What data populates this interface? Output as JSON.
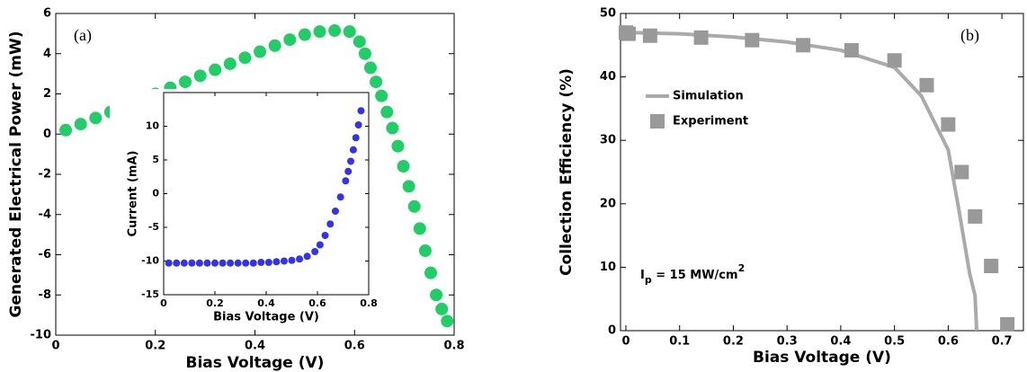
{
  "chart_data": [
    {
      "type": "scatter",
      "panel_label": "(a)",
      "xlabel": "Bias Voltage (V)",
      "ylabel": "Generated Electrical Power (mW)",
      "xlim": [
        0,
        0.8
      ],
      "xticks": [
        0,
        0.2,
        0.4,
        0.6,
        0.8
      ],
      "ylim": [
        -10,
        6
      ],
      "yticks": [
        -10,
        -8,
        -6,
        -4,
        -2,
        0,
        2,
        4,
        6
      ],
      "series": [
        {
          "color": "#22cc66",
          "marker": "circle",
          "x": [
            0.02,
            0.05,
            0.08,
            0.11,
            0.14,
            0.17,
            0.2,
            0.23,
            0.26,
            0.29,
            0.32,
            0.35,
            0.38,
            0.41,
            0.44,
            0.47,
            0.5,
            0.53,
            0.56,
            0.59,
            0.61,
            0.621,
            0.632,
            0.643,
            0.654,
            0.665,
            0.676,
            0.687,
            0.698,
            0.709,
            0.72,
            0.731,
            0.742,
            0.753,
            0.764,
            0.775,
            0.786
          ],
          "values": [
            0.2,
            0.5,
            0.8,
            1.1,
            1.4,
            1.7,
            2.0,
            2.3,
            2.6,
            2.9,
            3.2,
            3.5,
            3.8,
            4.1,
            4.4,
            4.7,
            4.95,
            5.1,
            5.15,
            5.1,
            4.6,
            4.0,
            3.3,
            2.6,
            1.9,
            1.1,
            0.3,
            -0.6,
            -1.6,
            -2.6,
            -3.6,
            -4.7,
            -5.8,
            -6.9,
            -8.0,
            -8.7,
            -9.3
          ]
        }
      ]
    },
    {
      "type": "scatter",
      "xlabel": "Bias Voltage (V)",
      "ylabel": "Current (mA)",
      "xlim": [
        0,
        0.8
      ],
      "xticks": [
        0,
        0.2,
        0.4,
        0.6,
        0.8
      ],
      "ylim": [
        -15,
        15
      ],
      "yticks": [
        -15,
        -10,
        -5,
        0,
        5,
        10
      ],
      "series": [
        {
          "color": "#3333ee",
          "marker": "circle",
          "x": [
            0.02,
            0.05,
            0.08,
            0.11,
            0.14,
            0.17,
            0.2,
            0.23,
            0.26,
            0.29,
            0.32,
            0.35,
            0.38,
            0.41,
            0.44,
            0.47,
            0.5,
            0.53,
            0.56,
            0.59,
            0.61,
            0.63,
            0.65,
            0.67,
            0.69,
            0.71,
            0.72,
            0.73,
            0.74,
            0.75,
            0.76,
            0.77
          ],
          "values": [
            -10.3,
            -10.3,
            -10.3,
            -10.3,
            -10.3,
            -10.3,
            -10.3,
            -10.3,
            -10.3,
            -10.3,
            -10.3,
            -10.3,
            -10.2,
            -10.2,
            -10.1,
            -10.0,
            -9.9,
            -9.7,
            -9.3,
            -8.6,
            -7.6,
            -6.2,
            -4.5,
            -2.6,
            -0.5,
            1.9,
            3.3,
            4.8,
            6.5,
            8.3,
            10.2,
            12.3
          ]
        }
      ]
    },
    {
      "type": "line",
      "panel_label": "(b)",
      "xlabel": "Bias Voltage (V)",
      "ylabel": "Collection Efficiency (%)",
      "xlim": [
        -0.01,
        0.74
      ],
      "xticks": [
        0,
        0.1,
        0.2,
        0.3,
        0.4,
        0.5,
        0.6,
        0.7
      ],
      "ylim": [
        0,
        50
      ],
      "yticks": [
        0,
        10,
        20,
        30,
        40,
        50
      ],
      "legend": "upper left",
      "annotation": {
        "base": "I",
        "sub": "p",
        "text": " = 15 MW/cm",
        "sup": "2"
      },
      "series": [
        {
          "name": "Simulation",
          "type": "line",
          "color": "#aaaaaa",
          "x": [
            0,
            0.1,
            0.2,
            0.3,
            0.4,
            0.5,
            0.55,
            0.6,
            0.62,
            0.64,
            0.65,
            0.653
          ],
          "values": [
            47,
            46.8,
            46.3,
            45.5,
            44.2,
            41.5,
            37,
            28.5,
            19,
            9,
            5.5,
            0
          ]
        },
        {
          "name": "Experiment",
          "type": "scatter",
          "marker": "square",
          "color": "#999999",
          "x": [
            0,
            0.005,
            0.045,
            0.14,
            0.235,
            0.33,
            0.42,
            0.5,
            0.56,
            0.6,
            0.625,
            0.65,
            0.68,
            0.71
          ],
          "values": [
            47,
            46.8,
            46.5,
            46.2,
            45.8,
            45,
            44.2,
            42.6,
            38.7,
            32.5,
            25,
            18,
            10.2,
            1
          ]
        }
      ]
    }
  ]
}
